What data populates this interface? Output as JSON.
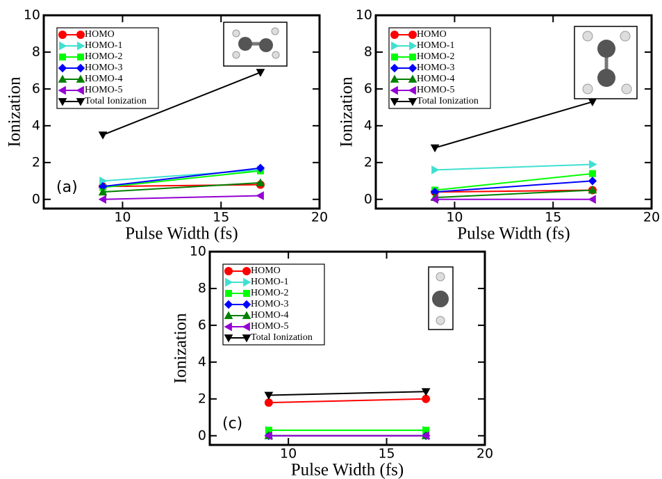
{
  "chart_data": [
    {
      "type": "line",
      "annotation": "(a)",
      "xlabel": "Pulse Width (fs)",
      "ylabel": "Ionization",
      "x": [
        9,
        17
      ],
      "xlim": [
        6,
        20
      ],
      "xticks": [
        10,
        15,
        20
      ],
      "ylim": [
        -0.5,
        10
      ],
      "yticks": [
        0,
        2,
        4,
        6,
        8,
        10
      ],
      "legend": "upper left",
      "series": [
        {
          "name": "HOMO",
          "color": "#ff0000",
          "marker": "circle",
          "values": [
            0.7,
            0.8
          ]
        },
        {
          "name": "HOMO-1",
          "color": "#40e0d0",
          "marker": "triangle-right",
          "values": [
            1.0,
            1.6
          ]
        },
        {
          "name": "HOMO-2",
          "color": "#00ff00",
          "marker": "square",
          "values": [
            0.65,
            1.55
          ]
        },
        {
          "name": "HOMO-3",
          "color": "#0000ff",
          "marker": "diamond",
          "values": [
            0.7,
            1.7
          ]
        },
        {
          "name": "HOMO-4",
          "color": "#008000",
          "marker": "triangle-up",
          "values": [
            0.4,
            0.9
          ]
        },
        {
          "name": "HOMO-5",
          "color": "#9400d3",
          "marker": "triangle-left",
          "values": [
            0.0,
            0.2
          ]
        },
        {
          "name": "Total Ionization",
          "color": "#000000",
          "marker": "triangle-down",
          "values": [
            3.5,
            6.9
          ]
        }
      ]
    },
    {
      "type": "line",
      "xlabel": "Pulse Width (fs)",
      "ylabel": "Ionization",
      "x": [
        9,
        17
      ],
      "xlim": [
        6,
        20
      ],
      "xticks": [
        10,
        15,
        20
      ],
      "ylim": [
        -0.5,
        10
      ],
      "yticks": [
        0,
        2,
        4,
        6,
        8,
        10
      ],
      "legend": "upper left",
      "series": [
        {
          "name": "HOMO",
          "color": "#ff0000",
          "marker": "circle",
          "values": [
            0.4,
            0.5
          ]
        },
        {
          "name": "HOMO-1",
          "color": "#40e0d0",
          "marker": "triangle-right",
          "values": [
            1.6,
            1.9
          ]
        },
        {
          "name": "HOMO-2",
          "color": "#00ff00",
          "marker": "square",
          "values": [
            0.5,
            1.4
          ]
        },
        {
          "name": "HOMO-3",
          "color": "#0000ff",
          "marker": "diamond",
          "values": [
            0.4,
            1.0
          ]
        },
        {
          "name": "HOMO-4",
          "color": "#008000",
          "marker": "triangle-up",
          "values": [
            0.1,
            0.5
          ]
        },
        {
          "name": "HOMO-5",
          "color": "#9400d3",
          "marker": "triangle-left",
          "values": [
            0.0,
            0.0
          ]
        },
        {
          "name": "Total Ionization",
          "color": "#000000",
          "marker": "triangle-down",
          "values": [
            2.8,
            5.3
          ]
        }
      ]
    },
    {
      "type": "line",
      "annotation": "(c)",
      "xlabel": "Pulse Width (fs)",
      "ylabel": "Ionization",
      "x": [
        9,
        17
      ],
      "xlim": [
        6,
        20
      ],
      "xticks": [
        10,
        15,
        20
      ],
      "ylim": [
        -0.5,
        10
      ],
      "yticks": [
        0,
        2,
        4,
        6,
        8,
        10
      ],
      "legend": "upper left",
      "series": [
        {
          "name": "HOMO",
          "color": "#ff0000",
          "marker": "circle",
          "values": [
            1.8,
            2.0
          ]
        },
        {
          "name": "HOMO-1",
          "color": "#40e0d0",
          "marker": "triangle-right",
          "values": [
            0.3,
            0.3
          ]
        },
        {
          "name": "HOMO-2",
          "color": "#00ff00",
          "marker": "square",
          "values": [
            0.3,
            0.3
          ]
        },
        {
          "name": "HOMO-3",
          "color": "#0000ff",
          "marker": "diamond",
          "values": [
            0.0,
            0.0
          ]
        },
        {
          "name": "HOMO-4",
          "color": "#008000",
          "marker": "triangle-up",
          "values": [
            0.0,
            0.0
          ]
        },
        {
          "name": "HOMO-5",
          "color": "#9400d3",
          "marker": "triangle-left",
          "values": [
            0.0,
            0.0
          ]
        },
        {
          "name": "Total Ionization",
          "color": "#000000",
          "marker": "triangle-down",
          "values": [
            2.2,
            2.4
          ]
        }
      ]
    }
  ]
}
